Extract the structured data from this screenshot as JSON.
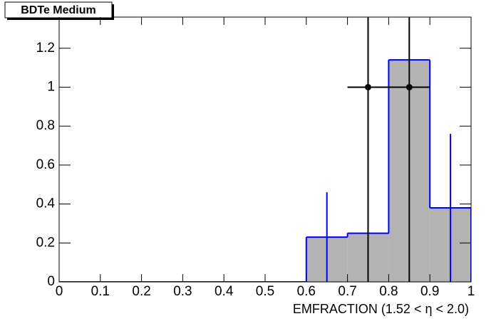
{
  "chart_data": {
    "type": "histogram",
    "title": "BDTe Medium",
    "x_label": "EMFRACTION (1.52 <  η < 2.0)",
    "bins": [
      0,
      0.1,
      0.2,
      0.3,
      0.4,
      0.5,
      0.6,
      0.7,
      0.8,
      0.9,
      1
    ],
    "histogram": {
      "color": "#0000ff",
      "fill": "#b3b3b3",
      "values": [
        0,
        0,
        0,
        0,
        0,
        0,
        0.23,
        0.25,
        1.14,
        0.38
      ],
      "errors": [
        null,
        null,
        null,
        null,
        null,
        null,
        0.23,
        null,
        null,
        0.38
      ]
    },
    "points": {
      "color": "#000000",
      "x": [
        0.75,
        0.85
      ],
      "values": [
        1,
        1
      ],
      "xerr": [
        0.05,
        0.05
      ],
      "yerr": [
        1,
        1
      ]
    },
    "xlim": [
      0,
      1
    ],
    "ylim": [
      0,
      1.36
    ],
    "xticks": [
      0,
      0.1,
      0.2,
      0.3,
      0.4,
      0.5,
      0.6,
      0.7,
      0.8,
      0.9,
      1
    ],
    "yticks": [
      0,
      0.2,
      0.4,
      0.6,
      0.8,
      1,
      1.2
    ]
  }
}
